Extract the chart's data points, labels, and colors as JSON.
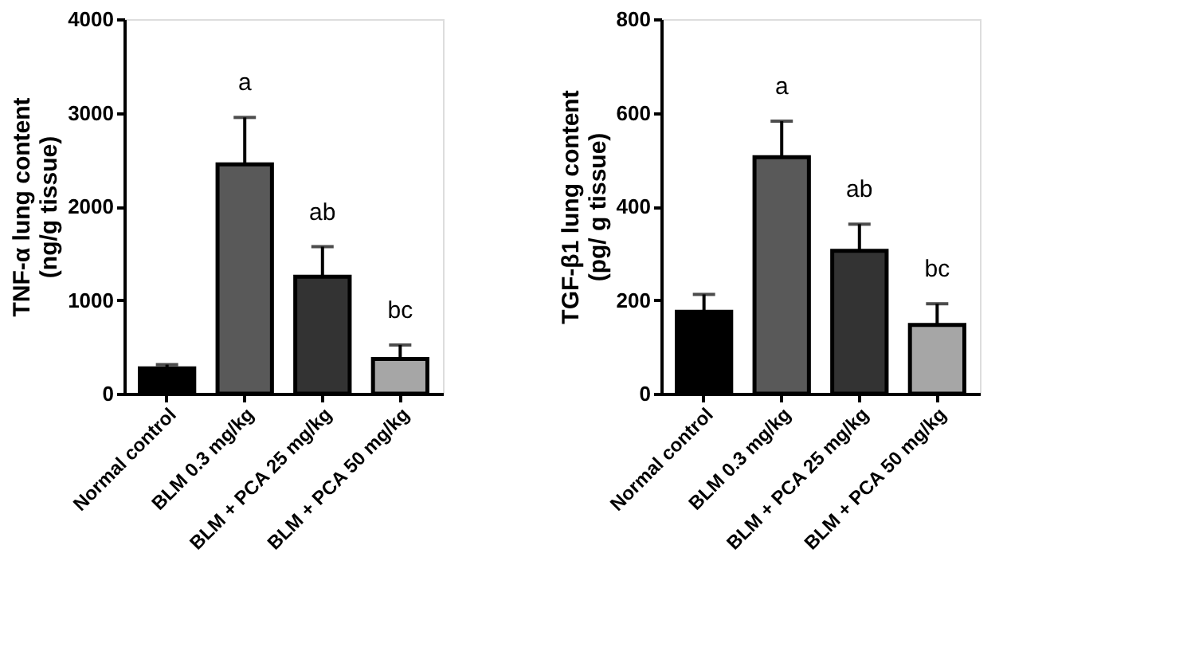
{
  "chart_data": [
    {
      "type": "bar",
      "categories": [
        "Normal control",
        "BLM 0.3 mg/kg",
        "BLM + PCA 25 mg/kg",
        "BLM + PCA 50 mg/kg"
      ],
      "values": [
        270,
        2450,
        1250,
        370
      ],
      "colors": [
        "#000000",
        "#595959",
        "#333333",
        "#a6a6a6"
      ],
      "errors": [
        [
          270,
          310
        ],
        [
          2450,
          2950
        ],
        [
          1250,
          1570
        ],
        [
          370,
          520
        ]
      ],
      "ylabel": "TNF-α lung content\n(ng/g tissue)",
      "ylim": [
        0,
        4000
      ],
      "yticks": [
        0,
        1000,
        2000,
        3000,
        4000
      ],
      "grid": false,
      "legend": false,
      "annotations": [
        "a",
        "ab",
        "bc"
      ]
    },
    {
      "type": "bar",
      "categories": [
        "Normal control",
        "BLM 0.3 mg/kg",
        "BLM + PCA 25 mg/kg",
        "BLM + PCA 50 mg/kg"
      ],
      "values": [
        175,
        505,
        305,
        147
      ],
      "colors": [
        "#000000",
        "#595959",
        "#333333",
        "#a6a6a6"
      ],
      "errors": [
        [
          175,
          212
        ],
        [
          505,
          582
        ],
        [
          305,
          362
        ],
        [
          147,
          192
        ]
      ],
      "ylabel": "TGF-β1 lung content\n(pg/ g tissue)",
      "ylim": [
        0,
        800
      ],
      "yticks": [
        0,
        200,
        400,
        600,
        800
      ],
      "grid": false,
      "legend": false,
      "annotations": [
        "a",
        "ab",
        "bc"
      ]
    }
  ]
}
